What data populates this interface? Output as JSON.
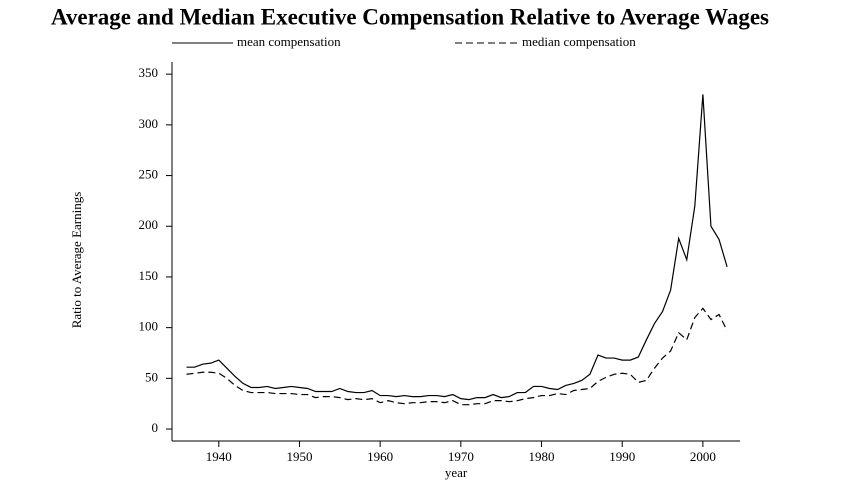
{
  "chart_data": {
    "type": "line",
    "title": "Average and Median Executive Compensation Relative to Average Wages",
    "x_label": "year",
    "y_label": "Ratio to Average Earnings",
    "x": [
      1936,
      1937,
      1938,
      1939,
      1940,
      1941,
      1942,
      1943,
      1944,
      1945,
      1946,
      1947,
      1948,
      1949,
      1950,
      1951,
      1952,
      1953,
      1954,
      1955,
      1956,
      1957,
      1958,
      1959,
      1960,
      1961,
      1962,
      1963,
      1964,
      1965,
      1966,
      1967,
      1968,
      1969,
      1970,
      1971,
      1972,
      1973,
      1974,
      1975,
      1976,
      1977,
      1978,
      1979,
      1980,
      1981,
      1982,
      1983,
      1984,
      1985,
      1986,
      1987,
      1988,
      1989,
      1990,
      1991,
      1992,
      1993,
      1994,
      1995,
      1996,
      1997,
      1998,
      1999,
      2000,
      2001,
      2002,
      2003
    ],
    "series": [
      {
        "name": "mean compensation",
        "color": "#000000",
        "style": "solid",
        "values": [
          61,
          61,
          64,
          65,
          68,
          60,
          52,
          45,
          41,
          41,
          42,
          40,
          41,
          42,
          41,
          40,
          37,
          37,
          37,
          40,
          37,
          36,
          36,
          38,
          33,
          33,
          32,
          33,
          32,
          32,
          33,
          33,
          32,
          34,
          30,
          29,
          31,
          31,
          34,
          31,
          32,
          36,
          36,
          42,
          42,
          40,
          39,
          43,
          45,
          48,
          54,
          73,
          70,
          70,
          68,
          68,
          71,
          88,
          104,
          116,
          137,
          188,
          167,
          220,
          330,
          200,
          187,
          160
        ]
      },
      {
        "name": "median compensation",
        "color": "#000000",
        "style": "dashed",
        "values": [
          54,
          55,
          56,
          56,
          55,
          50,
          43,
          38,
          36,
          36,
          36,
          35,
          35,
          35,
          34,
          34,
          31,
          32,
          32,
          31,
          29,
          30,
          29,
          30,
          26,
          28,
          26,
          25,
          26,
          26,
          27,
          27,
          26,
          28,
          24,
          24,
          25,
          25,
          28,
          28,
          27,
          28,
          30,
          31,
          33,
          33,
          35,
          34,
          38,
          39,
          40,
          47,
          51,
          54,
          55,
          54,
          46,
          48,
          60,
          70,
          77,
          95,
          88,
          110,
          119,
          108,
          113,
          97
        ]
      }
    ],
    "xlim": [
      1934.2,
      2004.6
    ],
    "ylim": [
      -11.8,
      362
    ],
    "xticks": [
      1940,
      1950,
      1960,
      1970,
      1980,
      1990,
      2000
    ],
    "yticks": [
      0,
      50,
      100,
      150,
      200,
      250,
      300,
      350
    ]
  }
}
